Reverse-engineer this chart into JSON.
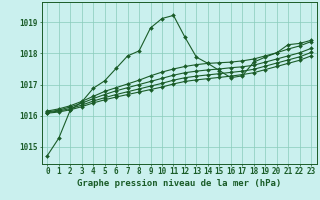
{
  "background_color": "#caf0ee",
  "grid_color": "#88ccbb",
  "line_color": "#1a5c28",
  "xlabel": "Graphe pression niveau de la mer (hPa)",
  "ylim": [
    1014.45,
    1019.65
  ],
  "xlim": [
    -0.5,
    23.5
  ],
  "xticks": [
    0,
    1,
    2,
    3,
    4,
    5,
    6,
    7,
    8,
    9,
    10,
    11,
    12,
    13,
    14,
    15,
    16,
    17,
    18,
    19,
    20,
    21,
    22,
    23
  ],
  "yticks": [
    1015,
    1016,
    1017,
    1018,
    1019
  ],
  "series": [
    [
      1014.72,
      1015.28,
      1016.18,
      1016.44,
      1016.88,
      1017.12,
      1017.52,
      1017.92,
      1018.08,
      1018.82,
      1019.12,
      1019.22,
      1018.52,
      1017.88,
      1017.68,
      1017.45,
      1017.22,
      1017.28,
      1017.72,
      1017.88,
      1018.02,
      1018.28,
      1018.32,
      1018.42
    ],
    [
      1016.15,
      1016.22,
      1016.32,
      1016.46,
      1016.62,
      1016.78,
      1016.9,
      1017.02,
      1017.14,
      1017.28,
      1017.4,
      1017.5,
      1017.58,
      1017.64,
      1017.68,
      1017.7,
      1017.72,
      1017.76,
      1017.82,
      1017.92,
      1018.02,
      1018.14,
      1018.24,
      1018.38
    ],
    [
      1016.12,
      1016.18,
      1016.28,
      1016.4,
      1016.55,
      1016.68,
      1016.8,
      1016.9,
      1017.0,
      1017.1,
      1017.2,
      1017.3,
      1017.38,
      1017.43,
      1017.47,
      1017.5,
      1017.54,
      1017.57,
      1017.62,
      1017.72,
      1017.82,
      1017.92,
      1018.02,
      1018.16
    ],
    [
      1016.1,
      1016.15,
      1016.23,
      1016.34,
      1016.47,
      1016.58,
      1016.68,
      1016.77,
      1016.86,
      1016.95,
      1017.04,
      1017.14,
      1017.22,
      1017.27,
      1017.31,
      1017.35,
      1017.39,
      1017.43,
      1017.49,
      1017.59,
      1017.69,
      1017.79,
      1017.89,
      1018.03
    ],
    [
      1016.08,
      1016.12,
      1016.19,
      1016.29,
      1016.41,
      1016.51,
      1016.6,
      1016.68,
      1016.76,
      1016.84,
      1016.92,
      1017.02,
      1017.1,
      1017.15,
      1017.19,
      1017.23,
      1017.27,
      1017.32,
      1017.38,
      1017.48,
      1017.58,
      1017.68,
      1017.78,
      1017.92
    ]
  ],
  "marker": "D",
  "marker_size": 2.0,
  "linewidth": 0.8,
  "xlabel_fontsize": 6.5,
  "tick_fontsize": 5.5
}
